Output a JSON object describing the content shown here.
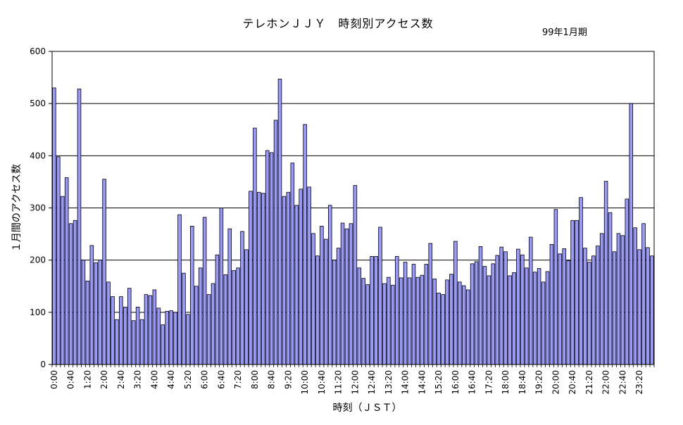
{
  "chart_data": {
    "type": "bar",
    "title": "テレホンＪＪＹ　時刻別アクセス数",
    "subtitle": "99年1月期",
    "xlabel": "時刻（ＪＳＴ）",
    "ylabel": "１月間のアクセス数",
    "ylim": [
      0,
      600
    ],
    "yticks": [
      0,
      100,
      200,
      300,
      400,
      500,
      600
    ],
    "grid": true,
    "bar_color": "#9999ff",
    "x_interval_minutes": 10,
    "xtick_labels": [
      "0:00",
      "0:40",
      "1:20",
      "2:00",
      "2:40",
      "3:20",
      "4:00",
      "4:40",
      "5:20",
      "6:00",
      "6:40",
      "7:20",
      "8:00",
      "8:40",
      "9:20",
      "10:00",
      "10:40",
      "11:20",
      "12:00",
      "12:40",
      "13:20",
      "14:00",
      "14:40",
      "15:20",
      "16:00",
      "16:40",
      "17:20",
      "18:00",
      "18:40",
      "19:20",
      "20:00",
      "20:40",
      "21:20",
      "22:00",
      "22:40",
      "23:20"
    ],
    "values": [
      530,
      398,
      322,
      358,
      270,
      276,
      528,
      200,
      160,
      228,
      195,
      200,
      355,
      158,
      130,
      86,
      130,
      110,
      146,
      84,
      110,
      86,
      134,
      132,
      143,
      108,
      76,
      102,
      103,
      100,
      287,
      175,
      96,
      265,
      150,
      185,
      282,
      134,
      155,
      210,
      300,
      172,
      260,
      180,
      185,
      255,
      220,
      332,
      453,
      330,
      328,
      410,
      406,
      468,
      547,
      322,
      330,
      386,
      305,
      336,
      460,
      340,
      251,
      208,
      265,
      240,
      305,
      200,
      223,
      271,
      260,
      270,
      343,
      185,
      165,
      153,
      207,
      207,
      263,
      155,
      167,
      152,
      207,
      166,
      196,
      166,
      192,
      167,
      171,
      192,
      232,
      164,
      137,
      134,
      162,
      173,
      236,
      158,
      151,
      143,
      193,
      197,
      226,
      188,
      170,
      193,
      209,
      225,
      216,
      170,
      176,
      221,
      210,
      185,
      244,
      177,
      184,
      158,
      178,
      230,
      297,
      212,
      222,
      199,
      276,
      276,
      320,
      223,
      196,
      208,
      227,
      251,
      351,
      291,
      216,
      251,
      247,
      317,
      500,
      262,
      220,
      270,
      224,
      208
    ]
  }
}
